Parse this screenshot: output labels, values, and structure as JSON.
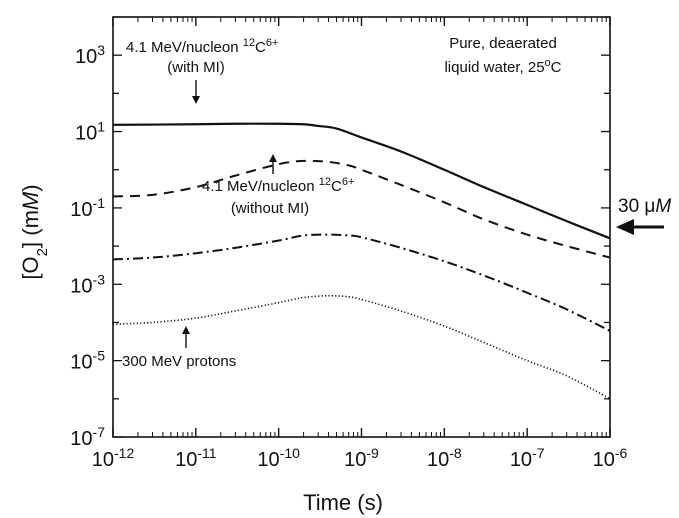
{
  "chart_data": {
    "type": "line",
    "xscale": "log",
    "yscale": "log",
    "xlim": [
      1e-12,
      1e-06
    ],
    "ylim": [
      1e-07,
      10000.0
    ],
    "xlabel": {
      "base": "Time (s)"
    },
    "ylabel": {
      "pre": "[O",
      "sub": "2",
      "mid": "] (m",
      "ital": "M",
      "post": ")"
    },
    "x_ticks": [
      {
        "value": 1e-12,
        "base": "10",
        "exp": "-12"
      },
      {
        "value": 1e-11,
        "base": "10",
        "exp": "-11"
      },
      {
        "value": 1e-10,
        "base": "10",
        "exp": "-10"
      },
      {
        "value": 1e-09,
        "base": "10",
        "exp": "-9"
      },
      {
        "value": 1e-08,
        "base": "10",
        "exp": "-8"
      },
      {
        "value": 1e-07,
        "base": "10",
        "exp": "-7"
      },
      {
        "value": 1e-06,
        "base": "10",
        "exp": "-6"
      }
    ],
    "y_ticks": [
      {
        "value": 1000.0,
        "base": "10",
        "exp": "3"
      },
      {
        "value": 10.0,
        "base": "10",
        "exp": "1"
      },
      {
        "value": 0.1,
        "base": "10",
        "exp": "-1"
      },
      {
        "value": 0.001,
        "base": "10",
        "exp": "-3"
      },
      {
        "value": 1e-05,
        "base": "10",
        "exp": "-5"
      },
      {
        "value": 1e-07,
        "base": "10",
        "exp": "-7"
      }
    ],
    "series": [
      {
        "style": "solid",
        "x": [
          1e-12,
          1e-11,
          3e-11,
          1e-10,
          2e-10,
          3e-10,
          5e-10,
          1e-09,
          3e-09,
          1e-08,
          3e-08,
          1e-07,
          3e-07,
          1e-06
        ],
        "y": [
          15,
          15.5,
          16,
          16,
          15.5,
          14,
          12,
          7,
          3,
          1,
          0.35,
          0.12,
          0.045,
          0.016
        ]
      },
      {
        "style": "dashed",
        "x": [
          1e-12,
          3e-12,
          1e-11,
          3e-11,
          1e-10,
          2e-10,
          4e-10,
          7e-10,
          1e-09,
          3e-09,
          1e-08,
          3e-08,
          1e-07,
          3e-07,
          1e-06
        ],
        "y": [
          0.2,
          0.22,
          0.35,
          0.7,
          1.4,
          1.7,
          1.6,
          1.3,
          1,
          0.4,
          0.14,
          0.05,
          0.02,
          0.01,
          0.005
        ]
      },
      {
        "style": "dash-dot",
        "x": [
          1e-12,
          3e-12,
          1e-11,
          3e-11,
          1e-10,
          2e-10,
          4e-10,
          7e-10,
          1e-09,
          3e-09,
          1e-08,
          3e-08,
          1e-07,
          3e-07,
          1e-06
        ],
        "y": [
          0.0045,
          0.005,
          0.0065,
          0.009,
          0.014,
          0.019,
          0.02,
          0.019,
          0.017,
          0.009,
          0.004,
          0.0017,
          0.0006,
          0.00022,
          6e-05
        ]
      },
      {
        "style": "dotted",
        "x": [
          1e-12,
          3e-12,
          1e-11,
          3e-11,
          1e-10,
          2e-10,
          4e-10,
          7e-10,
          1e-09,
          3e-09,
          1e-08,
          3e-08,
          1e-07,
          3e-07,
          1e-06
        ],
        "y": [
          9e-05,
          0.0001,
          0.00013,
          0.0002,
          0.00033,
          0.00045,
          0.0005,
          0.00047,
          0.0004,
          0.0002,
          8e-05,
          3e-05,
          1e-05,
          4e-06,
          1e-06
        ]
      }
    ],
    "annotations": [
      {
        "line1_a": "4.1 MeV/nucleon ",
        "line1_sup1": "12",
        "line1_b": "C",
        "line1_sup2": "6+",
        "line2": "(with MI)"
      },
      {
        "line1_a": "4.1 MeV/nucleon ",
        "line1_sup1": "12",
        "line1_b": "C",
        "line1_sup2": "6+",
        "line2": "(without MI)"
      },
      {
        "line1": "300 MeV protons"
      },
      {
        "line1": "Pure, deaerated",
        "line2_a": "liquid water, 25",
        "line2_sup": "o",
        "line2_b": "C"
      },
      {
        "value": "30 ",
        "unit_mu": "μ",
        "unit_M": "M"
      }
    ],
    "grid": false,
    "legend": "none"
  }
}
